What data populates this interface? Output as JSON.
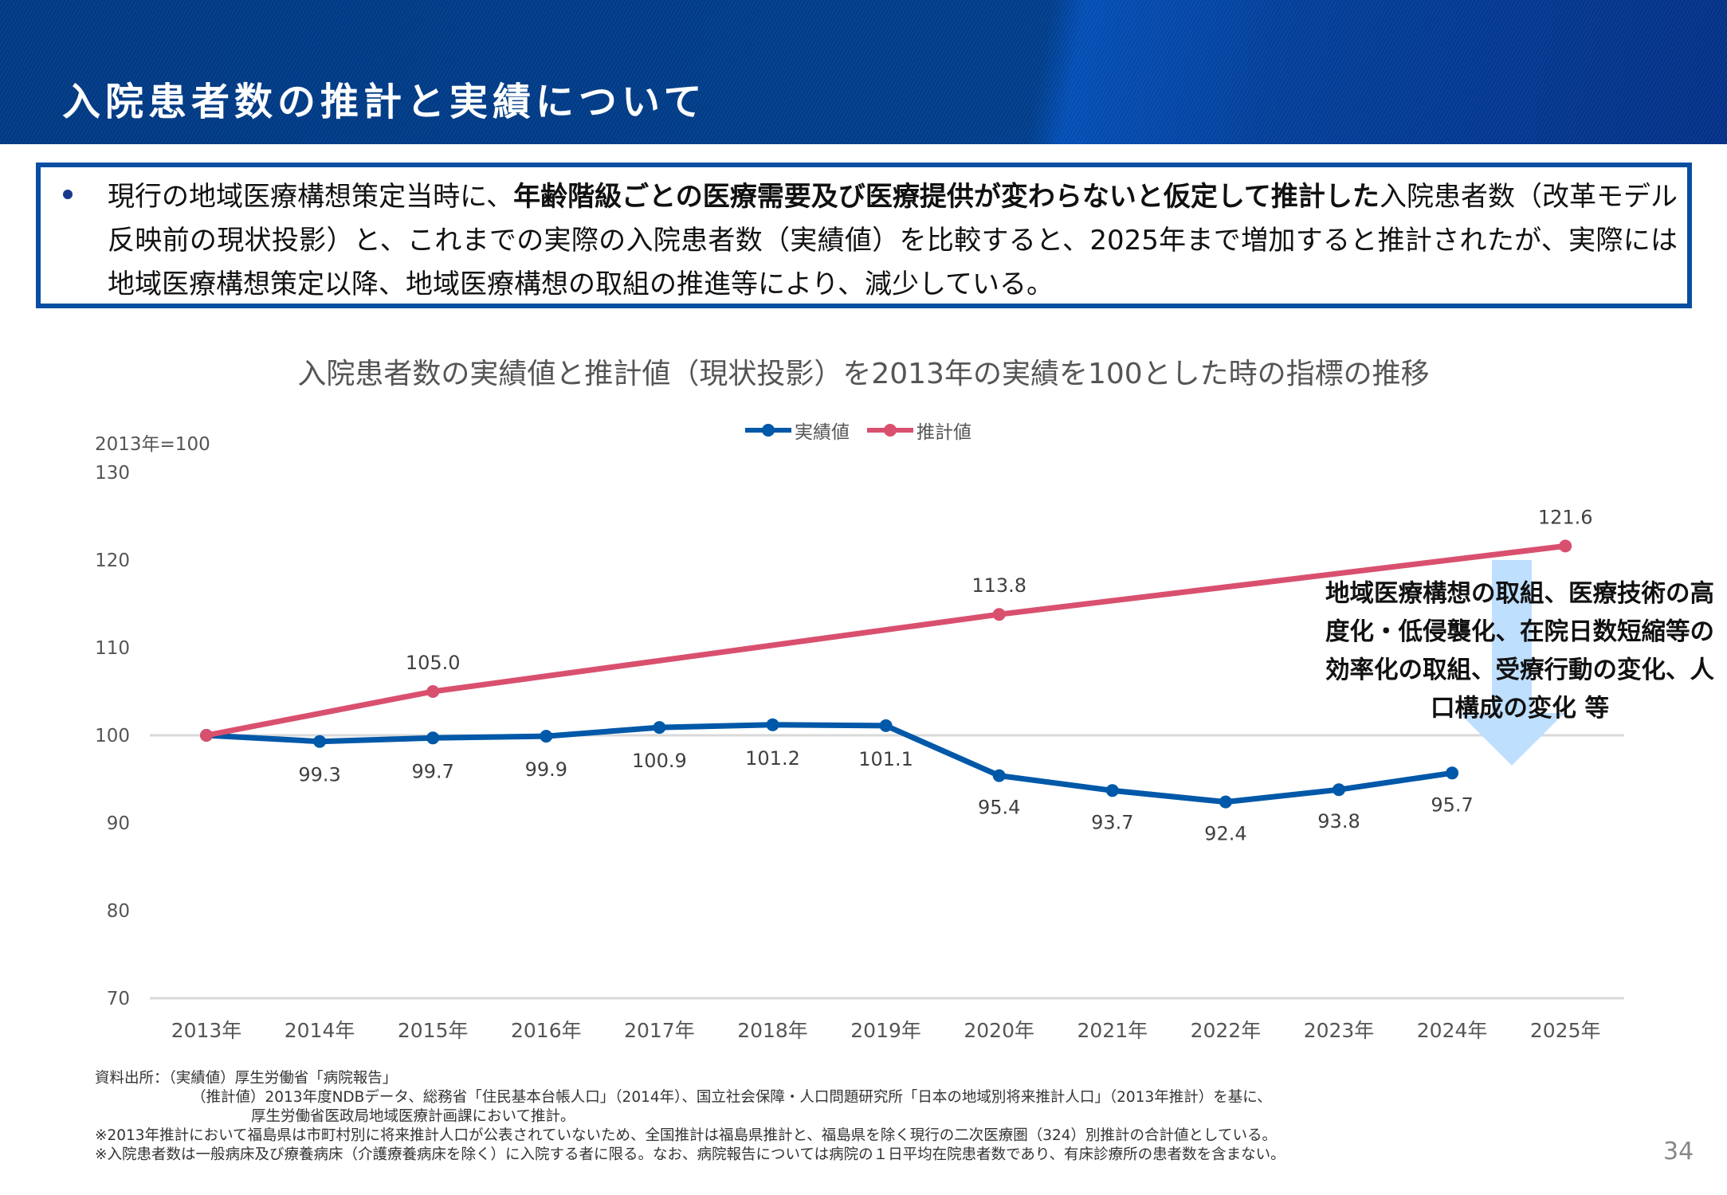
{
  "header": {
    "title": "入院患者数の推計と実績について"
  },
  "summary": {
    "bullet_icon": "bullet-dot",
    "text_before": "現行の地域医療構想策定当時に、",
    "text_bold": "年齢階級ごとの医療需要及び医療提供が変わらないと仮定して推計した",
    "text_after": "入院患者数（改革モデル反映前の現状投影）と、これまでの実際の入院患者数（実績値）を比較すると、2025年まで増加すると推計されたが、実際には地域医療構想策定以降、地域医療構想の取組の推進等により、減少している。"
  },
  "annotation": {
    "text": "地域医療構想の取組、医療技術の高度化・低侵襲化、在院日数短縮等の効率化の取組、受療行動の変化、人口構成の変化 等",
    "arrow_icon": "down-arrow",
    "arrow_color": "#bfdfff"
  },
  "chart_data": {
    "type": "line",
    "title": "入院患者数の実績値と推計値（現状投影）を2013年の実績を100とした時の指標の推移",
    "ylabel": "2013年=100",
    "xlabel": "",
    "categories": [
      "2013年",
      "2014年",
      "2015年",
      "2016年",
      "2017年",
      "2018年",
      "2019年",
      "2020年",
      "2021年",
      "2022年",
      "2023年",
      "2024年",
      "2025年"
    ],
    "ylim": [
      70,
      130
    ],
    "yticks": [
      70,
      80,
      90,
      100,
      110,
      120,
      130
    ],
    "gridlines": [
      70,
      100
    ],
    "legend_position": "top-center",
    "series": [
      {
        "name": "実績値",
        "color": "#0058a8",
        "values": [
          100,
          99.3,
          99.7,
          99.9,
          100.9,
          101.2,
          101.1,
          95.4,
          93.7,
          92.4,
          93.8,
          95.7,
          null
        ],
        "data_labels": [
          null,
          "99.3",
          "99.7",
          "99.9",
          "100.9",
          "101.2",
          "101.1",
          "95.4",
          "93.7",
          "92.4",
          "93.8",
          "95.7",
          null
        ]
      },
      {
        "name": "推計値",
        "color": "#d9506f",
        "values": [
          100,
          null,
          105.0,
          null,
          null,
          null,
          null,
          113.8,
          null,
          null,
          null,
          null,
          121.6
        ],
        "data_labels": [
          null,
          null,
          "105.0",
          null,
          null,
          null,
          null,
          "113.8",
          null,
          null,
          null,
          null,
          "121.6"
        ]
      }
    ]
  },
  "sources": {
    "line1": "資料出所：（実績値）厚生労働省「病院報告」",
    "line2": "（推計値）2013年度NDBデータ、総務省「住民基本台帳人口」（2014年）、国立社会保障・人口問題研究所「日本の地域別将来推計人口」（2013年推計）を基に、",
    "line3": "厚生労働省医政局地域医療計画課において推計。",
    "note1": "※2013年推計において福島県は市町村別に将来推計人口が公表されていないため、全国推計は福島県推計と、福島県を除く現行の二次医療圏（324）別推計の合計値としている。",
    "note2": "※入院患者数は一般病床及び療養病床（介護療養病床を除く）に入院する者に限る。なお、病院報告については病院の１日平均在院患者数であり、有床診療所の患者数を含まない。"
  },
  "page_number": "34"
}
